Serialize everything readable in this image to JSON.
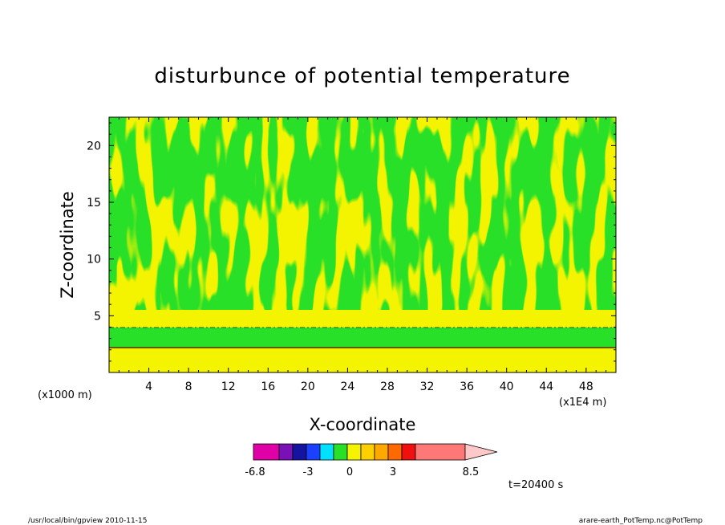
{
  "chart_data": {
    "type": "heatmap",
    "title": "disturbunce of potential temperature",
    "xlabel": "X-coordinate",
    "ylabel": "Z-coordinate",
    "x_units": "(x1E4 m)",
    "z_units": "(x1000 m)",
    "x_ticks": [
      4,
      8,
      12,
      16,
      20,
      24,
      28,
      32,
      36,
      40,
      44,
      48
    ],
    "z_ticks": [
      5,
      10,
      15,
      20
    ],
    "xlim": [
      0,
      51
    ],
    "zlim": [
      0,
      22.5
    ],
    "colorbar": {
      "colors": [
        "#e000a8",
        "#7a10b8",
        "#1414a0",
        "#1c40ff",
        "#00e0ff",
        "#28e028",
        "#f4f400",
        "#ffd000",
        "#ffa800",
        "#ff6a00",
        "#f01010",
        "#ff7878"
      ],
      "tick_labels": [
        "-6.8",
        "-3",
        "0",
        "3",
        "8.5"
      ],
      "extend_max": true
    },
    "time_label": "t=20400 s",
    "field_colors": {
      "positive": "#f4f400",
      "negative": "#28e028",
      "contour": "#000000"
    }
  },
  "footer": {
    "left": "/usr/local/bin/gpview   2010-11-15",
    "right": "arare-earth_PotTemp.nc@PotTemp"
  }
}
